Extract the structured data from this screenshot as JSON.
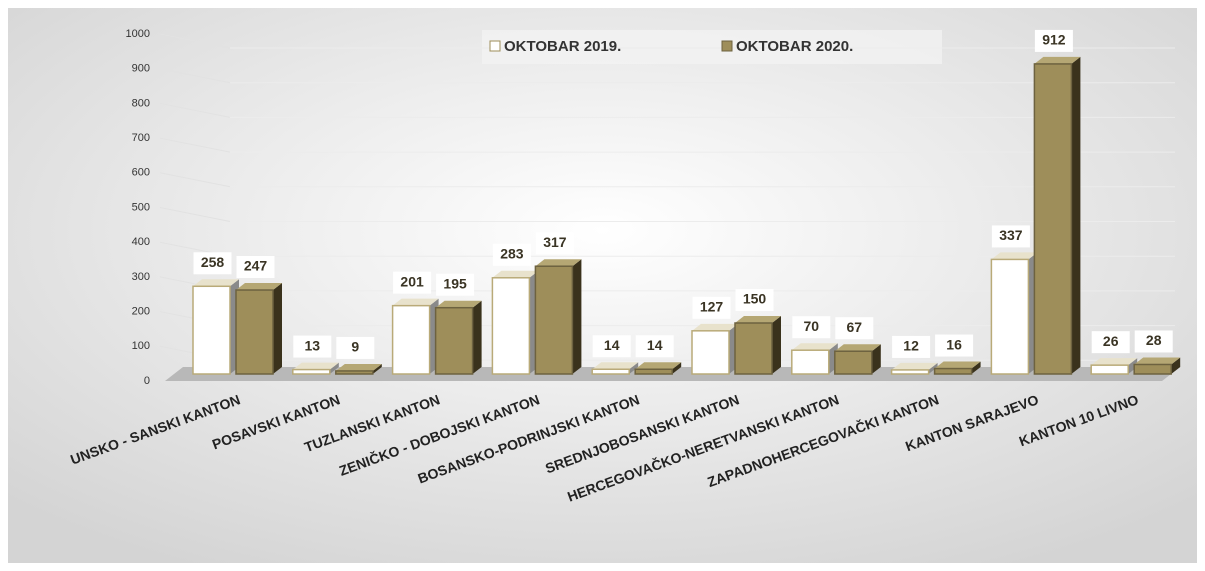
{
  "chart_data": {
    "type": "bar3d",
    "categories": [
      "UNSKO - SANSKI KANTON",
      "POSAVSKI KANTON",
      "TUZLANSKI KANTON",
      "ZENIČKO - DOBOJSKI KANTON",
      "BOSANSKO-PODRINJSKI KANTON",
      "SREDNJOBOSANSKI KANTON",
      "HERCEGOVAČKO-NERETVANSKI KANTON",
      "ZAPADNOHERCEGOVAČKI KANTON",
      "KANTON SARAJEVO",
      "KANTON 10 LIVNO"
    ],
    "series": [
      {
        "name": "OKTOBAR 2019.",
        "color": "#ffffff",
        "values": [
          258,
          13,
          201,
          283,
          14,
          127,
          70,
          12,
          337,
          26
        ]
      },
      {
        "name": "OKTOBAR 2020.",
        "color": "#9e8e5a",
        "values": [
          247,
          9,
          195,
          317,
          14,
          150,
          67,
          16,
          912,
          28
        ]
      }
    ],
    "ylim": [
      0,
      1000
    ],
    "yticks": [
      0,
      100,
      200,
      300,
      400,
      500,
      600,
      700,
      800,
      900,
      1000
    ],
    "grid": true,
    "legend": "top"
  }
}
